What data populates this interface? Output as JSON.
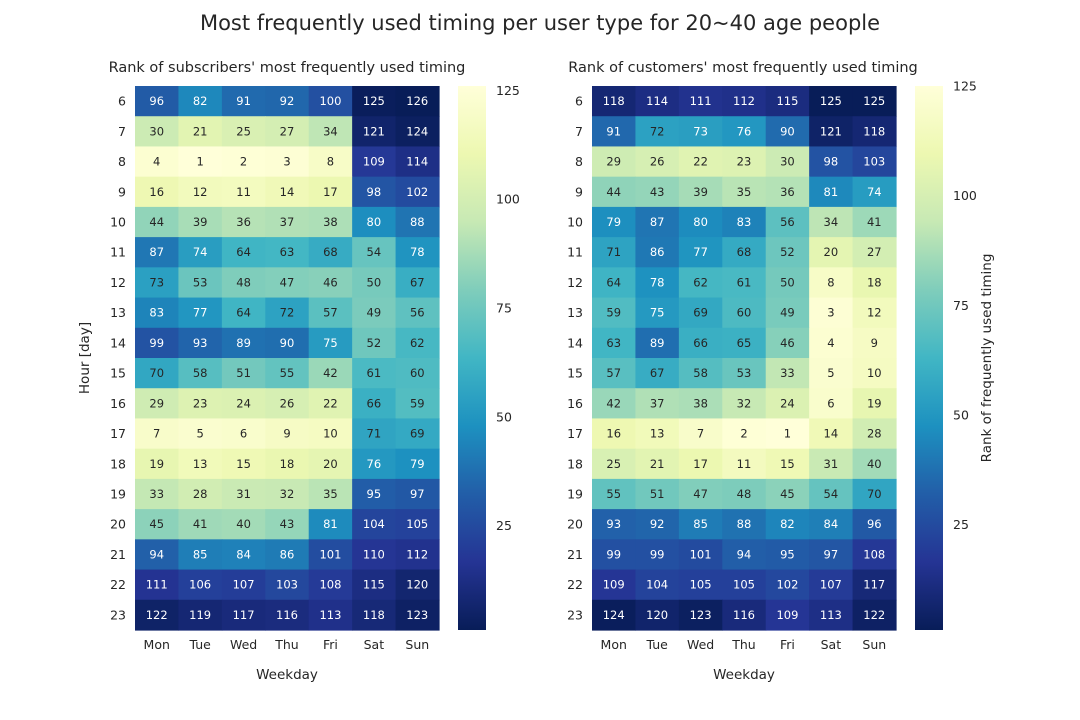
{
  "figure_title": "Most frequently used timing per user type for 20~40 age people",
  "colormap": "YlGnBu",
  "colormap_stops": [
    "#ffffd9",
    "#edf8b1",
    "#c7e9b4",
    "#7fcdbb",
    "#41b6c4",
    "#1d91c0",
    "#225ea8",
    "#253494",
    "#081d58"
  ],
  "chart_data": [
    {
      "type": "heatmap",
      "title": "Rank of subscribers' most frequently used timing",
      "xlabel": "Weekday",
      "ylabel": "Hour [day]",
      "x": [
        "Mon",
        "Tue",
        "Wed",
        "Thu",
        "Fri",
        "Sat",
        "Sun"
      ],
      "y": [
        "6",
        "7",
        "8",
        "9",
        "10",
        "11",
        "12",
        "13",
        "14",
        "15",
        "16",
        "17",
        "18",
        "19",
        "20",
        "21",
        "22",
        "23"
      ],
      "values": [
        [
          96,
          82,
          91,
          92,
          100,
          125,
          126
        ],
        [
          30,
          21,
          25,
          27,
          34,
          121,
          124
        ],
        [
          4,
          1,
          2,
          3,
          8,
          109,
          114
        ],
        [
          16,
          12,
          11,
          14,
          17,
          98,
          102
        ],
        [
          44,
          39,
          36,
          37,
          38,
          80,
          88
        ],
        [
          87,
          74,
          64,
          63,
          68,
          54,
          78
        ],
        [
          73,
          53,
          48,
          47,
          46,
          50,
          67
        ],
        [
          83,
          77,
          64,
          72,
          57,
          49,
          56
        ],
        [
          99,
          93,
          89,
          90,
          75,
          52,
          62
        ],
        [
          70,
          58,
          51,
          55,
          42,
          61,
          60
        ],
        [
          29,
          23,
          24,
          26,
          22,
          66,
          59
        ],
        [
          7,
          5,
          6,
          9,
          10,
          71,
          69
        ],
        [
          19,
          13,
          15,
          18,
          20,
          76,
          79
        ],
        [
          33,
          28,
          31,
          32,
          35,
          95,
          97
        ],
        [
          45,
          41,
          40,
          43,
          81,
          104,
          105
        ],
        [
          94,
          85,
          84,
          86,
          101,
          110,
          112
        ],
        [
          111,
          106,
          107,
          103,
          108,
          115,
          120
        ],
        [
          122,
          119,
          117,
          116,
          113,
          118,
          123
        ]
      ],
      "colorbar": {
        "label": "",
        "range": [
          1,
          126
        ],
        "ticks": [
          25,
          50,
          75,
          100,
          125
        ]
      }
    },
    {
      "type": "heatmap",
      "title": "Rank of customers' most frequently used timing",
      "xlabel": "Weekday",
      "ylabel": "",
      "x": [
        "Mon",
        "Tue",
        "Wed",
        "Thu",
        "Fri",
        "Sat",
        "Sun"
      ],
      "y": [
        "6",
        "7",
        "8",
        "9",
        "10",
        "11",
        "12",
        "13",
        "14",
        "15",
        "16",
        "17",
        "18",
        "19",
        "20",
        "21",
        "22",
        "23"
      ],
      "values": [
        [
          118,
          114,
          111,
          112,
          115,
          125,
          125
        ],
        [
          91,
          72,
          73,
          76,
          90,
          121,
          118
        ],
        [
          29,
          26,
          22,
          23,
          30,
          98,
          103
        ],
        [
          44,
          43,
          39,
          35,
          36,
          81,
          74
        ],
        [
          79,
          87,
          80,
          83,
          56,
          34,
          41
        ],
        [
          71,
          86,
          77,
          68,
          52,
          20,
          27
        ],
        [
          64,
          78,
          62,
          61,
          50,
          8,
          18
        ],
        [
          59,
          75,
          69,
          60,
          49,
          3,
          12
        ],
        [
          63,
          89,
          66,
          65,
          46,
          4,
          9
        ],
        [
          57,
          67,
          58,
          53,
          33,
          5,
          10
        ],
        [
          42,
          37,
          38,
          32,
          24,
          6,
          19
        ],
        [
          16,
          13,
          7,
          2,
          1,
          14,
          28
        ],
        [
          25,
          21,
          17,
          11,
          15,
          31,
          40
        ],
        [
          55,
          51,
          47,
          48,
          45,
          54,
          70
        ],
        [
          93,
          92,
          85,
          88,
          82,
          84,
          96
        ],
        [
          99,
          99,
          101,
          94,
          95,
          97,
          108
        ],
        [
          109,
          104,
          105,
          105,
          102,
          107,
          117
        ],
        [
          124,
          120,
          123,
          116,
          109,
          113,
          122
        ]
      ],
      "colorbar": {
        "label": "Rank of frequently used timing",
        "range": [
          1,
          125
        ],
        "ticks": [
          25,
          50,
          75,
          100,
          125
        ]
      }
    }
  ]
}
